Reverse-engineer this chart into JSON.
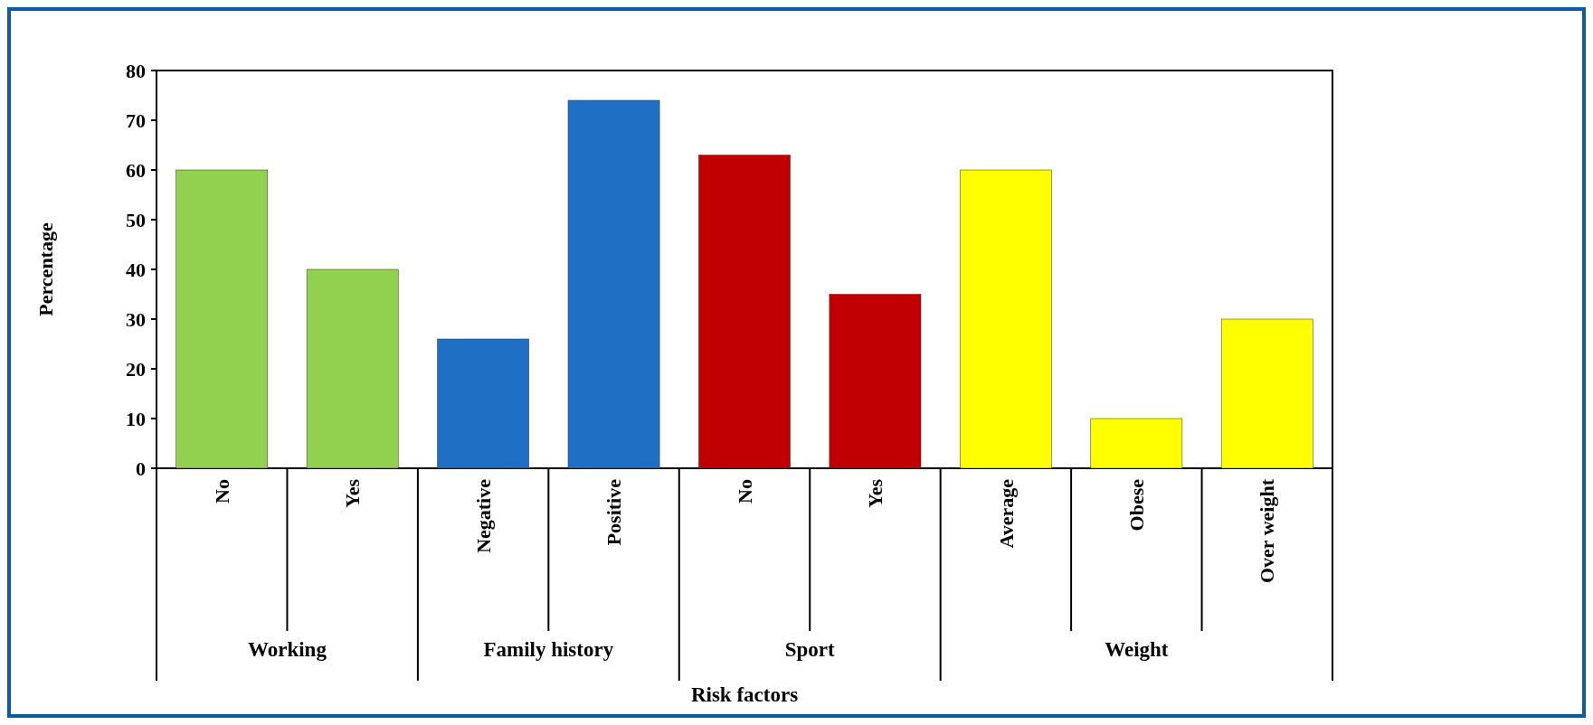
{
  "chart_data": {
    "type": "bar",
    "xlabel": "Risk factors",
    "ylabel": "Percentage",
    "categories": [
      "No",
      "Yes",
      "Negative",
      "Positive",
      "No",
      "Yes",
      "Average",
      "Obese",
      "Over weight"
    ],
    "values": [
      60,
      40,
      26,
      74,
      63,
      35,
      60,
      10,
      30
    ],
    "colors": [
      "#92d050",
      "#92d050",
      "#1f6fc5",
      "#1f6fc5",
      "#c00000",
      "#c00000",
      "#ffff00",
      "#ffff00",
      "#ffff00"
    ],
    "annotations": [
      "Working",
      "Family history",
      "Sport",
      "Weight"
    ],
    "ylim": [
      0,
      80
    ],
    "yticks": [
      0,
      10,
      20,
      30,
      40,
      50,
      60,
      70,
      80
    ],
    "grid": false
  }
}
